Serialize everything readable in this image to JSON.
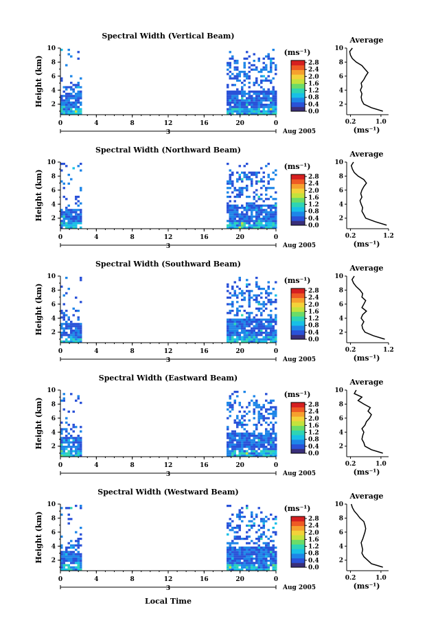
{
  "figure": {
    "average_title": "Average",
    "unit_label": "(ms⁻¹)",
    "xlabel": "Local Time",
    "date_label": "Aug 2005",
    "day_label": "3"
  },
  "colorbar": {
    "ticks": [
      "2.8",
      "2.4",
      "2.0",
      "1.6",
      "1.2",
      "0.8",
      "0.4",
      "0.0"
    ],
    "colors": [
      "#3a2f7a",
      "#2a52d8",
      "#1e86e8",
      "#18c0e6",
      "#2fd4b4",
      "#6bdc68",
      "#c4e23c",
      "#f3d23a",
      "#f6a02e",
      "#ee5a24",
      "#d51f20"
    ]
  },
  "chart_data": [
    {
      "type": "heatmap",
      "title": "Spectral Width (Vertical Beam)",
      "ylabel": "Height (km)",
      "x_ticks": [
        "0",
        "4",
        "8",
        "12",
        "16",
        "20",
        "0"
      ],
      "y_ticks": [
        "2",
        "4",
        "6",
        "8",
        "10"
      ],
      "xlim": [
        0,
        24
      ],
      "ylim": [
        0.5,
        10
      ],
      "color_scale": [
        0,
        3.0
      ],
      "data_coverage_hours": [
        [
          0,
          2.2
        ],
        [
          18.5,
          24
        ]
      ],
      "profile": {
        "title": "Average",
        "xlabel": "(ms⁻¹)",
        "xticks": [
          "0.2",
          "1.0"
        ],
        "xlim": [
          0.1,
          1.2
        ],
        "height_km": [
          1,
          1.5,
          2,
          2.5,
          3,
          3.5,
          4,
          4.5,
          5,
          5.5,
          6,
          6.5,
          7,
          7.5,
          8,
          8.5,
          9,
          9.5,
          10
        ],
        "value_ms": [
          1.05,
          0.75,
          0.55,
          0.5,
          0.48,
          0.5,
          0.46,
          0.5,
          0.48,
          0.55,
          0.6,
          0.66,
          0.58,
          0.5,
          0.35,
          0.25,
          0.2,
          0.18,
          0.25
        ]
      }
    },
    {
      "type": "heatmap",
      "title": "Spectral Width (Northward Beam)",
      "ylabel": "Height (km)",
      "x_ticks": [
        "0",
        "4",
        "8",
        "12",
        "16",
        "20",
        "0"
      ],
      "y_ticks": [
        "2",
        "4",
        "6",
        "8",
        "10"
      ],
      "xlim": [
        0,
        24
      ],
      "ylim": [
        0.5,
        10
      ],
      "color_scale": [
        0,
        3.0
      ],
      "data_coverage_hours": [
        [
          0,
          2.2
        ],
        [
          18.5,
          24
        ]
      ],
      "profile": {
        "title": "Average",
        "xlabel": "(ms⁻¹)",
        "xticks": [
          "0.2",
          "1.2"
        ],
        "xlim": [
          0.1,
          1.2
        ],
        "height_km": [
          1,
          1.5,
          2,
          2.5,
          3,
          3.5,
          4,
          4.5,
          5,
          5.5,
          6,
          6.5,
          7,
          7.5,
          8,
          8.5,
          9,
          9.5,
          10
        ],
        "value_ms": [
          1.15,
          0.85,
          0.6,
          0.55,
          0.5,
          0.52,
          0.48,
          0.45,
          0.5,
          0.47,
          0.5,
          0.55,
          0.62,
          0.55,
          0.4,
          0.3,
          0.25,
          0.22,
          0.28
        ]
      }
    },
    {
      "type": "heatmap",
      "title": "Spectral Width (Southward Beam)",
      "ylabel": "Height (km)",
      "x_ticks": [
        "0",
        "4",
        "8",
        "12",
        "16",
        "20",
        "0"
      ],
      "y_ticks": [
        "2",
        "4",
        "6",
        "8",
        "10"
      ],
      "xlim": [
        0,
        24
      ],
      "ylim": [
        0.5,
        10
      ],
      "color_scale": [
        0,
        3.0
      ],
      "data_coverage_hours": [
        [
          0,
          2.2
        ],
        [
          18.5,
          24
        ]
      ],
      "profile": {
        "title": "Average",
        "xlabel": "(ms⁻¹)",
        "xticks": [
          "0.2",
          "1.2"
        ],
        "xlim": [
          0.1,
          1.2
        ],
        "height_km": [
          1,
          1.5,
          2,
          2.5,
          3,
          3.5,
          4,
          4.5,
          5,
          5.5,
          6,
          6.5,
          7,
          7.5,
          8,
          8.5,
          9,
          9.5,
          10
        ],
        "value_ms": [
          1.1,
          0.8,
          0.58,
          0.52,
          0.5,
          0.55,
          0.48,
          0.52,
          0.62,
          0.5,
          0.55,
          0.6,
          0.5,
          0.52,
          0.45,
          0.35,
          0.28,
          0.24,
          0.3
        ]
      }
    },
    {
      "type": "heatmap",
      "title": "Spectral Width (Eastward Beam)",
      "ylabel": "Height (km)",
      "x_ticks": [
        "0",
        "4",
        "8",
        "12",
        "16",
        "20",
        "0"
      ],
      "y_ticks": [
        "2",
        "4",
        "6",
        "8",
        "10"
      ],
      "xlim": [
        0,
        24
      ],
      "ylim": [
        0.5,
        10
      ],
      "color_scale": [
        0,
        3.0
      ],
      "data_coverage_hours": [
        [
          0,
          2.2
        ],
        [
          18.5,
          24
        ]
      ],
      "profile": {
        "title": "Average",
        "xlabel": "(ms⁻¹)",
        "xticks": [
          "0.2",
          "1.0"
        ],
        "xlim": [
          0.1,
          1.2
        ],
        "height_km": [
          1,
          1.5,
          2,
          2.5,
          3,
          3.5,
          4,
          4.5,
          5,
          5.5,
          6,
          6.5,
          7,
          7.5,
          8,
          8.5,
          9,
          9.5,
          10
        ],
        "value_ms": [
          1.05,
          0.75,
          0.58,
          0.55,
          0.5,
          0.52,
          0.55,
          0.5,
          0.58,
          0.62,
          0.7,
          0.75,
          0.66,
          0.72,
          0.55,
          0.4,
          0.5,
          0.3,
          0.35
        ]
      }
    },
    {
      "type": "heatmap",
      "title": "Spectral Width (Westward Beam)",
      "ylabel": "Height (km)",
      "x_ticks": [
        "0",
        "4",
        "8",
        "12",
        "16",
        "20",
        "0"
      ],
      "y_ticks": [
        "2",
        "4",
        "6",
        "8",
        "10"
      ],
      "xlim": [
        0,
        24
      ],
      "ylim": [
        0.5,
        10
      ],
      "color_scale": [
        0,
        3.0
      ],
      "data_coverage_hours": [
        [
          0,
          2.2
        ],
        [
          18.5,
          24
        ]
      ],
      "profile": {
        "title": "Average",
        "xlabel": "(ms⁻¹)",
        "xticks": [
          "0.2",
          "1.0"
        ],
        "xlim": [
          0.1,
          1.2
        ],
        "height_km": [
          1,
          1.5,
          2,
          2.5,
          3,
          3.5,
          4,
          4.5,
          5,
          5.5,
          6,
          6.5,
          7,
          7.5,
          8,
          8.5,
          9,
          9.5,
          10
        ],
        "value_ms": [
          1.05,
          0.75,
          0.65,
          0.55,
          0.5,
          0.52,
          0.5,
          0.48,
          0.52,
          0.55,
          0.58,
          0.6,
          0.58,
          0.55,
          0.45,
          0.38,
          0.3,
          0.25,
          0.22
        ]
      }
    }
  ]
}
